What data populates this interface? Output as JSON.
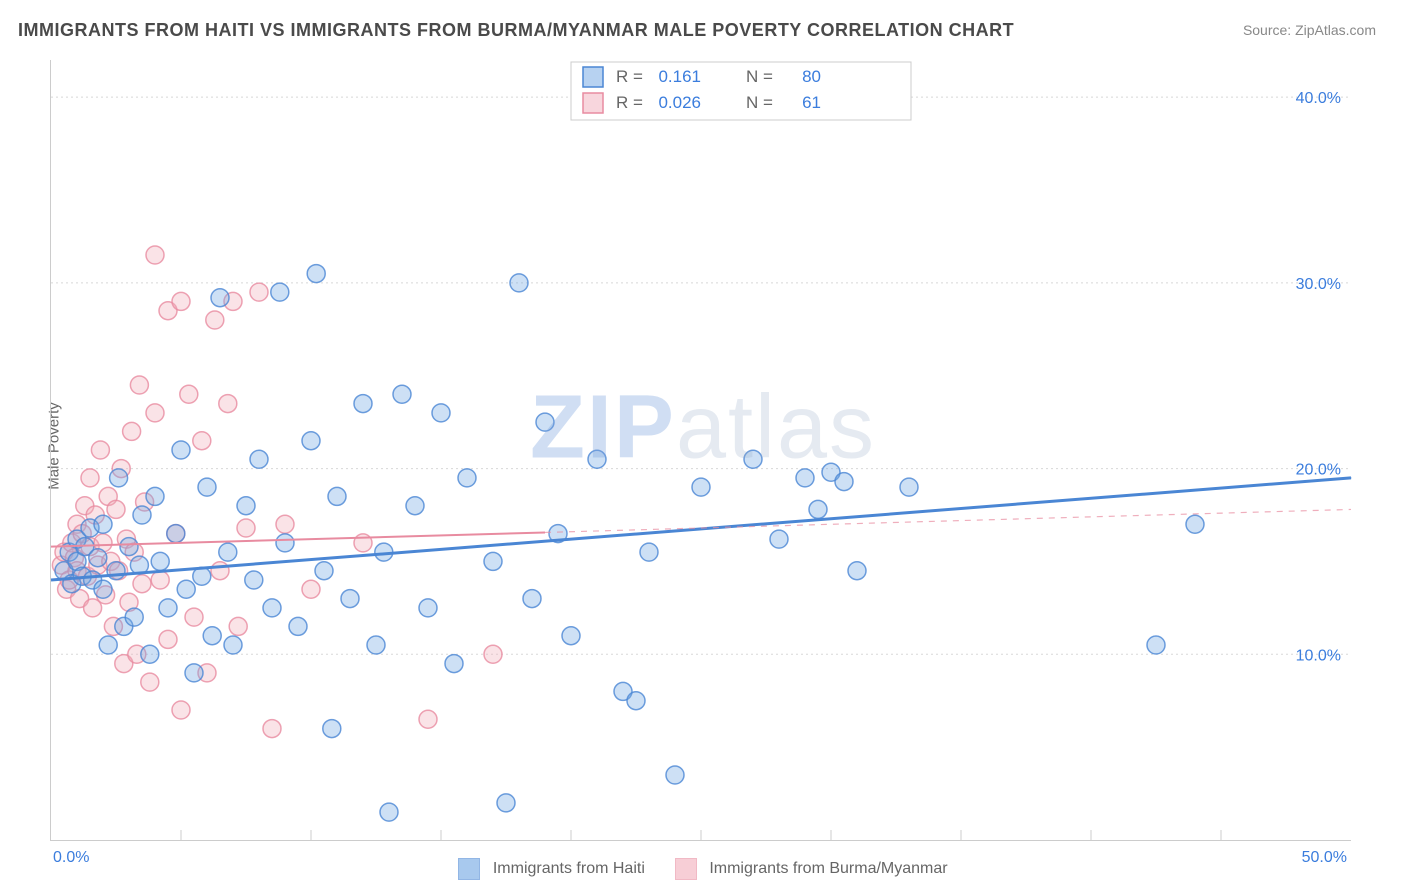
{
  "title": "IMMIGRANTS FROM HAITI VS IMMIGRANTS FROM BURMA/MYANMAR MALE POVERTY CORRELATION CHART",
  "source": "Source: ZipAtlas.com",
  "ylabel": "Male Poverty",
  "watermark": {
    "part1": "ZIP",
    "part2": "atlas"
  },
  "chart": {
    "type": "scatter",
    "background_color": "#ffffff",
    "grid_color": "#d8d8d8",
    "grid_dash": "2,3",
    "border_color": "#cccccc",
    "xlim": [
      0,
      50
    ],
    "ylim": [
      0,
      42
    ],
    "x_ticks": [
      0,
      50
    ],
    "x_tick_labels": [
      "0.0%",
      "50.0%"
    ],
    "x_subticks_pct": [
      10,
      20,
      30,
      40,
      50,
      60,
      70,
      80,
      90
    ],
    "y_gridlines": [
      10,
      20,
      30,
      40
    ],
    "y_tick_labels": [
      "10.0%",
      "20.0%",
      "30.0%",
      "40.0%"
    ],
    "axis_label_color": "#3b7ddd",
    "axis_label_fontsize": 16,
    "marker_radius": 9,
    "marker_fill_opacity": 0.35,
    "marker_stroke_width": 1.5,
    "series": [
      {
        "name": "Immigrants from Haiti",
        "color": "#6fa6e3",
        "stroke": "#4a86d4",
        "r_value": "0.161",
        "n_value": "80",
        "trend": {
          "y_at_x0": 14.0,
          "y_at_xmax": 19.5,
          "width": 3,
          "dash_after_x": 50
        },
        "points": [
          [
            0.5,
            14.5
          ],
          [
            0.7,
            15.5
          ],
          [
            0.8,
            13.8
          ],
          [
            1.0,
            15.0
          ],
          [
            1.0,
            16.2
          ],
          [
            1.2,
            14.2
          ],
          [
            1.3,
            15.8
          ],
          [
            1.5,
            16.8
          ],
          [
            1.6,
            14.0
          ],
          [
            1.8,
            15.2
          ],
          [
            2.0,
            17.0
          ],
          [
            2.0,
            13.5
          ],
          [
            2.2,
            10.5
          ],
          [
            2.5,
            14.5
          ],
          [
            2.6,
            19.5
          ],
          [
            2.8,
            11.5
          ],
          [
            3.0,
            15.8
          ],
          [
            3.2,
            12.0
          ],
          [
            3.4,
            14.8
          ],
          [
            3.5,
            17.5
          ],
          [
            3.8,
            10.0
          ],
          [
            4.0,
            18.5
          ],
          [
            4.2,
            15.0
          ],
          [
            4.5,
            12.5
          ],
          [
            4.8,
            16.5
          ],
          [
            5.0,
            21.0
          ],
          [
            5.2,
            13.5
          ],
          [
            5.5,
            9.0
          ],
          [
            5.8,
            14.2
          ],
          [
            6.0,
            19.0
          ],
          [
            6.2,
            11.0
          ],
          [
            6.5,
            29.2
          ],
          [
            6.8,
            15.5
          ],
          [
            7.0,
            10.5
          ],
          [
            7.5,
            18.0
          ],
          [
            7.8,
            14.0
          ],
          [
            8.0,
            20.5
          ],
          [
            8.5,
            12.5
          ],
          [
            8.8,
            29.5
          ],
          [
            9.0,
            16.0
          ],
          [
            9.5,
            11.5
          ],
          [
            10.0,
            21.5
          ],
          [
            10.2,
            30.5
          ],
          [
            10.5,
            14.5
          ],
          [
            10.8,
            6.0
          ],
          [
            11.0,
            18.5
          ],
          [
            11.5,
            13.0
          ],
          [
            12.0,
            23.5
          ],
          [
            12.5,
            10.5
          ],
          [
            12.8,
            15.5
          ],
          [
            13.0,
            1.5
          ],
          [
            13.5,
            24.0
          ],
          [
            14.0,
            18.0
          ],
          [
            14.5,
            12.5
          ],
          [
            15.0,
            23.0
          ],
          [
            15.5,
            9.5
          ],
          [
            16.0,
            19.5
          ],
          [
            17.0,
            15.0
          ],
          [
            17.5,
            2.0
          ],
          [
            18.0,
            30.0
          ],
          [
            18.5,
            13.0
          ],
          [
            19.0,
            22.5
          ],
          [
            19.5,
            16.5
          ],
          [
            20.0,
            11.0
          ],
          [
            21.0,
            20.5
          ],
          [
            22.0,
            8.0
          ],
          [
            22.5,
            7.5
          ],
          [
            23.0,
            15.5
          ],
          [
            24.0,
            3.5
          ],
          [
            25.0,
            19.0
          ],
          [
            27.0,
            20.5
          ],
          [
            28.0,
            16.2
          ],
          [
            29.0,
            19.5
          ],
          [
            29.5,
            17.8
          ],
          [
            30.0,
            19.8
          ],
          [
            30.5,
            19.3
          ],
          [
            31.0,
            14.5
          ],
          [
            33.0,
            19.0
          ],
          [
            42.5,
            10.5
          ],
          [
            44.0,
            17.0
          ]
        ]
      },
      {
        "name": "Immigrants from Burma/Myanmar",
        "color": "#f2aebb",
        "stroke": "#e88ba0",
        "r_value": "0.026",
        "n_value": "61",
        "trend": {
          "y_at_x0": 15.8,
          "y_at_xmax": 17.8,
          "width": 2,
          "dash_after_x": 19
        },
        "points": [
          [
            0.4,
            14.8
          ],
          [
            0.5,
            15.5
          ],
          [
            0.6,
            13.5
          ],
          [
            0.7,
            14.0
          ],
          [
            0.8,
            16.0
          ],
          [
            0.9,
            15.2
          ],
          [
            1.0,
            14.5
          ],
          [
            1.0,
            17.0
          ],
          [
            1.1,
            13.0
          ],
          [
            1.2,
            16.5
          ],
          [
            1.3,
            18.0
          ],
          [
            1.4,
            14.2
          ],
          [
            1.5,
            15.8
          ],
          [
            1.5,
            19.5
          ],
          [
            1.6,
            12.5
          ],
          [
            1.7,
            17.5
          ],
          [
            1.8,
            14.8
          ],
          [
            1.9,
            21.0
          ],
          [
            2.0,
            16.0
          ],
          [
            2.1,
            13.2
          ],
          [
            2.2,
            18.5
          ],
          [
            2.3,
            15.0
          ],
          [
            2.4,
            11.5
          ],
          [
            2.5,
            17.8
          ],
          [
            2.6,
            14.5
          ],
          [
            2.7,
            20.0
          ],
          [
            2.8,
            9.5
          ],
          [
            2.9,
            16.2
          ],
          [
            3.0,
            12.8
          ],
          [
            3.1,
            22.0
          ],
          [
            3.2,
            15.5
          ],
          [
            3.3,
            10.0
          ],
          [
            3.4,
            24.5
          ],
          [
            3.5,
            13.8
          ],
          [
            3.6,
            18.2
          ],
          [
            3.8,
            8.5
          ],
          [
            4.0,
            23.0
          ],
          [
            4.0,
            31.5
          ],
          [
            4.2,
            14.0
          ],
          [
            4.5,
            28.5
          ],
          [
            4.5,
            10.8
          ],
          [
            4.8,
            16.5
          ],
          [
            5.0,
            29.0
          ],
          [
            5.0,
            7.0
          ],
          [
            5.3,
            24.0
          ],
          [
            5.5,
            12.0
          ],
          [
            5.8,
            21.5
          ],
          [
            6.0,
            9.0
          ],
          [
            6.3,
            28.0
          ],
          [
            6.5,
            14.5
          ],
          [
            6.8,
            23.5
          ],
          [
            7.0,
            29.0
          ],
          [
            7.2,
            11.5
          ],
          [
            7.5,
            16.8
          ],
          [
            8.0,
            29.5
          ],
          [
            8.5,
            6.0
          ],
          [
            9.0,
            17.0
          ],
          [
            10.0,
            13.5
          ],
          [
            12.0,
            16.0
          ],
          [
            14.5,
            6.5
          ],
          [
            17.0,
            10.0
          ]
        ]
      }
    ],
    "stats_box": {
      "border_color": "#cccccc",
      "background": "#ffffff",
      "text_color_label": "#666666",
      "text_color_value": "#3b7ddd",
      "fontsize": 17,
      "r_label": "R  =",
      "n_label": "N  ="
    },
    "bottom_legend_fontsize": 16,
    "bottom_legend_text_color": "#666666"
  }
}
